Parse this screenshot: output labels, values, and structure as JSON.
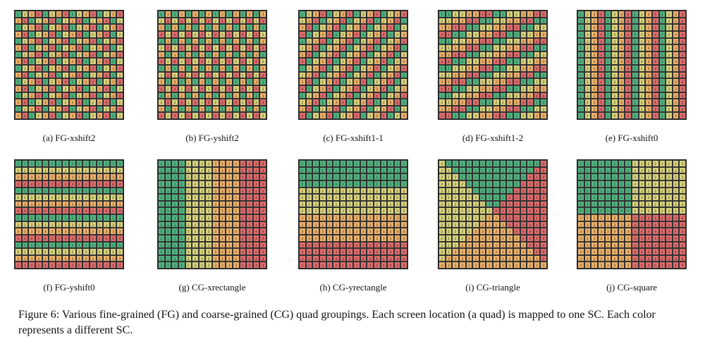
{
  "panels": [
    {
      "label": "(a) FG-xshift2",
      "pattern": "xshift2"
    },
    {
      "label": "(b) FG-yshift2",
      "pattern": "yshift2"
    },
    {
      "label": "(c) FG-xshift1-1",
      "pattern": "xshift1-1"
    },
    {
      "label": "(d) FG-xshift1-2",
      "pattern": "xshift1-2"
    },
    {
      "label": "(e) FG-xshift0",
      "pattern": "xshift0"
    },
    {
      "label": "(f) FG-yshift0",
      "pattern": "yshift0"
    },
    {
      "label": "(g) CG-xrectangle",
      "pattern": "xrectangle"
    },
    {
      "label": "(h) CG-yrectangle",
      "pattern": "yrectangle"
    },
    {
      "label": "(i) CG-triangle",
      "pattern": "triangle"
    },
    {
      "label": "(j) CG-square",
      "pattern": "square"
    }
  ],
  "grid_size": 16,
  "colors": {
    "1": "#4fb27e",
    "2": "#d8d27a",
    "3": "#ecb067",
    "4": "#e06b6b"
  },
  "caption": "Figure 6: Various fine-grained (FG) and coarse-grained (CG) quad groupings. Each screen location (a quad) is mapped to one SC. Each color represents a different SC."
}
